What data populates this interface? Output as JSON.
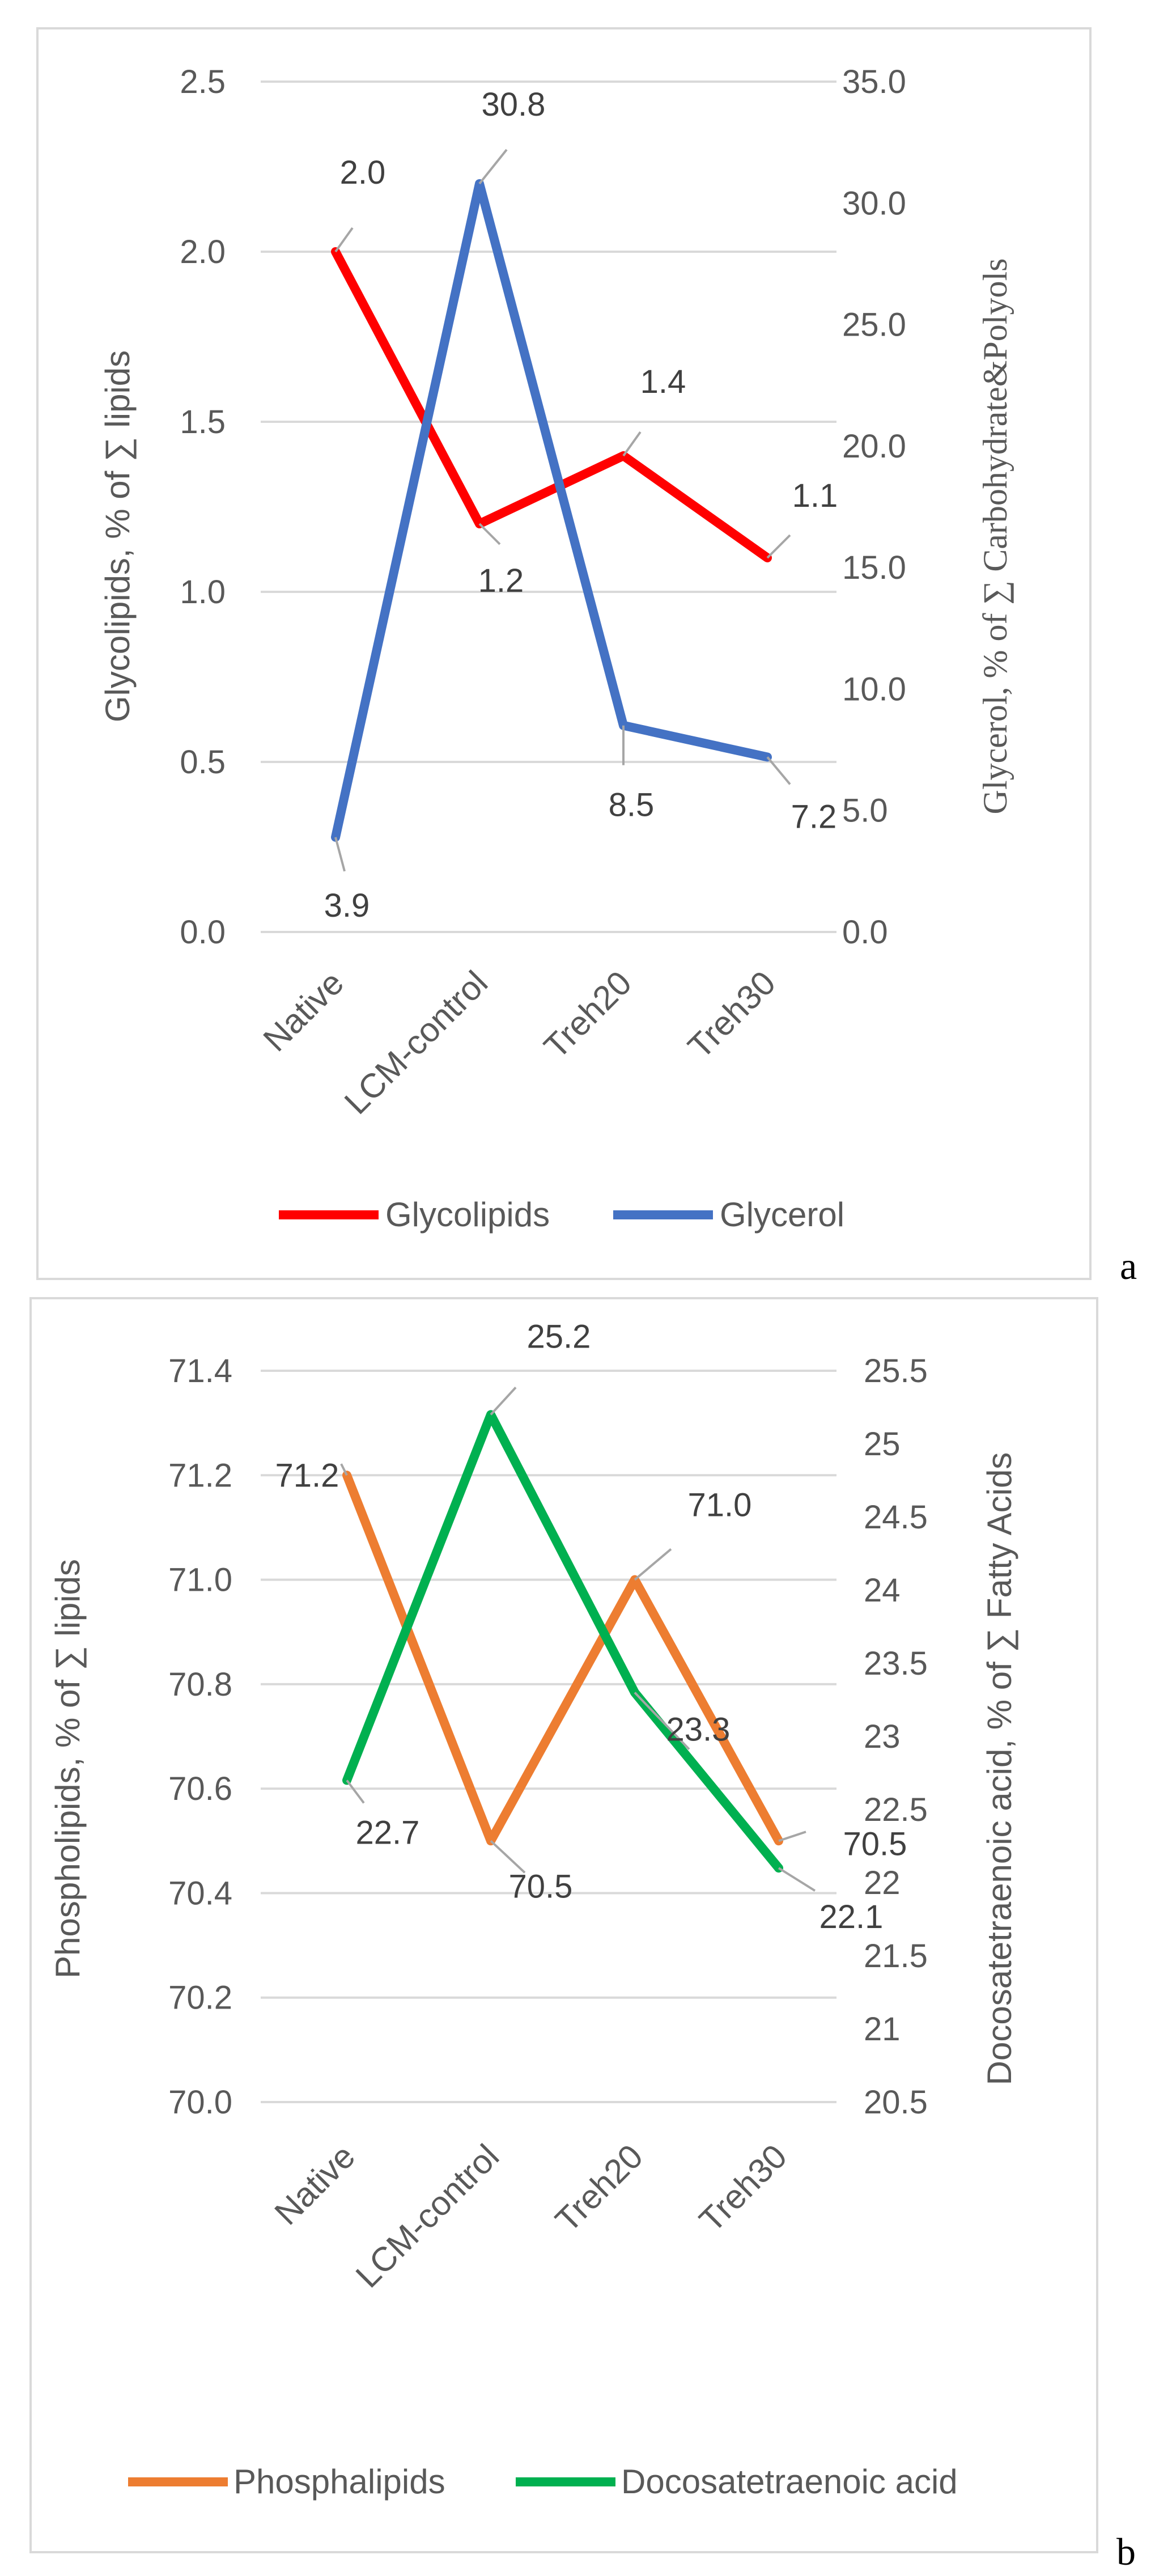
{
  "panel_labels": {
    "a": "a",
    "b": "b"
  },
  "colors": {
    "glycolipids": "#FF0000",
    "glycerol": "#4472C4",
    "phospholipids": "#ED7D31",
    "docosatetraenoic": "#00B050",
    "grid": "#D9D9D9",
    "axis_text": "#595959",
    "border": "#D9D9D9",
    "leader": "#A6A6A6"
  },
  "chart_data": [
    {
      "type": "line",
      "categories": [
        "Native",
        "LCM-control",
        "Treh20",
        "Treh30"
      ],
      "y_left": {
        "label": "Glycolipids, % of ∑ lipids",
        "ylim": [
          0,
          2.5
        ],
        "ticks": [
          "0.0",
          "0.5",
          "1.0",
          "1.5",
          "2.0",
          "2.5"
        ]
      },
      "y_right": {
        "label": "Glycerol, % of ∑ Carbohydrate&Polyols",
        "ylim": [
          0,
          35
        ],
        "ticks": [
          "0.0",
          "5.0",
          "10.0",
          "15.0",
          "20.0",
          "25.0",
          "30.0",
          "35.0"
        ]
      },
      "series": [
        {
          "name": "Glycolipids",
          "axis": "left",
          "color_key": "glycolipids",
          "values": [
            2.0,
            1.2,
            1.4,
            1.1
          ],
          "labels": [
            "2.0",
            "1.2",
            "1.4",
            "1.1"
          ]
        },
        {
          "name": "Glycerol",
          "axis": "right",
          "color_key": "glycerol",
          "values": [
            3.9,
            30.8,
            8.5,
            7.2
          ],
          "labels": [
            "3.9",
            "30.8",
            "8.5",
            "7.2"
          ]
        }
      ],
      "legend": [
        "Glycolipids",
        "Glycerol"
      ],
      "legend_position": "bottom",
      "grid": true
    },
    {
      "type": "line",
      "categories": [
        "Native",
        "LCM-control",
        "Treh20",
        "Treh30"
      ],
      "y_left": {
        "label": "Phospholipids, % of ∑ lipids",
        "ylim": [
          70.0,
          71.4
        ],
        "ticks": [
          "70.0",
          "70.2",
          "70.4",
          "70.6",
          "70.8",
          "71.0",
          "71.2",
          "71.4"
        ]
      },
      "y_right": {
        "label": "Docosatetraenoic acid, % of ∑ Fatty Acids",
        "ylim": [
          20.5,
          25.5
        ],
        "ticks": [
          "20.5",
          "21",
          "21.5",
          "22",
          "22.5",
          "23",
          "23.5",
          "24",
          "24.5",
          "25",
          "25.5"
        ]
      },
      "series": [
        {
          "name": "Phosphalipids",
          "axis": "left",
          "color_key": "phospholipids",
          "values": [
            71.2,
            70.5,
            71.0,
            70.5
          ],
          "labels": [
            "71.2",
            "70.5",
            "71.0",
            "70.5"
          ]
        },
        {
          "name": "Docosatetraenoic acid",
          "axis": "right",
          "color_key": "docosatetraenoic",
          "values": [
            22.7,
            25.2,
            23.3,
            22.1
          ],
          "labels": [
            "22.7",
            "25.2",
            "23.3",
            "22.1"
          ]
        }
      ],
      "legend": [
        "Phosphalipids",
        "Docosatetraenoic acid"
      ],
      "legend_position": "bottom",
      "grid": true
    }
  ]
}
